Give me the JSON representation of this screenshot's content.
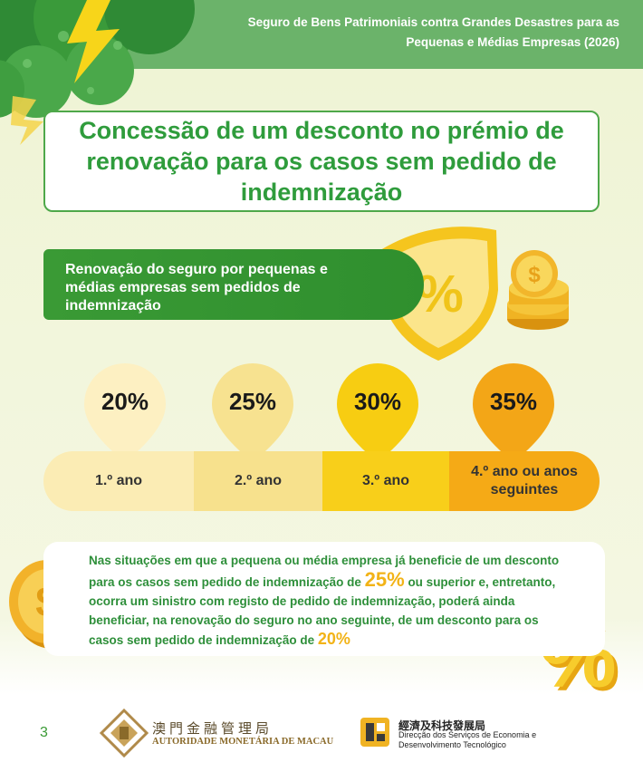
{
  "header": {
    "title_line1": "Seguro de Bens Patrimoniais contra Grandes Desastres para as",
    "title_line2": "Pequenas e Médias Empresas (2026)"
  },
  "main_title": {
    "line1": "Concessão de um desconto no prémio de",
    "line2": "renovação para os casos sem pedido de",
    "line3": "indemnização"
  },
  "banner": {
    "line1": "Renovação do seguro por pequenas e",
    "line2": "médias empresas sem pedidos de",
    "line3": "indemnização",
    "shield_symbol": "%"
  },
  "discounts": [
    {
      "percent": "20%",
      "year": "1.º ano",
      "color": "#fbecb4"
    },
    {
      "percent": "25%",
      "year": "2.º ano",
      "color": "#f7e18d"
    },
    {
      "percent": "30%",
      "year": "3.º ano",
      "color": "#f8cf1a"
    },
    {
      "percent": "35%",
      "year_line1": "4.º ano ou anos",
      "year_line2": "seguintes",
      "color": "#f5aa16"
    }
  ],
  "note": {
    "line1": "Nas situações em que a pequena ou média empresa já beneficie de um desconto",
    "line2_a": "para os casos sem pedido de indemnização de",
    "line2_hl": "25%",
    "line2_b": "ou superior e, entretanto,",
    "line3": "ocorra um sinistro com registo de pedido de indemnização, poderá ainda",
    "line4": "beneficiar, na renovação do seguro no ano seguinte, de um desconto para os",
    "line5_a": "casos sem pedido de indemnização de",
    "line5_hl": "20%"
  },
  "deco": {
    "coin_symbol": "$",
    "percent_symbol": "%"
  },
  "footer": {
    "page_number": "3",
    "amcm_cn": "澳門金融管理局",
    "amcm_pt": "AUTORIDADE MONETÁRIA DE MACAU",
    "dsedt_cn": "經濟及科技發展局",
    "dsedt_pt_line1": "Direcção dos Serviços de Economia e",
    "dsedt_pt_line2": "Desenvolvimento Tecnológico"
  },
  "colors": {
    "brand_green": "#3a9a35",
    "header_green": "#6bb36a",
    "accent_yellow": "#f2b317"
  }
}
